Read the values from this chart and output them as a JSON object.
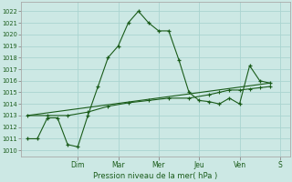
{
  "background_color": "#cce8e4",
  "grid_color": "#aad4d0",
  "line_color": "#1a5c1a",
  "xlabel": "Pression niveau de la mer( hPa )",
  "ylim": [
    1009.5,
    1022.8
  ],
  "xlim": [
    -0.3,
    13.0
  ],
  "yticks": [
    1010,
    1011,
    1012,
    1013,
    1014,
    1015,
    1016,
    1017,
    1018,
    1019,
    1020,
    1021,
    1022
  ],
  "day_labels": [
    "Dim",
    "Mar",
    "Mer",
    "Jeu",
    "Ven",
    "S"
  ],
  "day_positions": [
    2.5,
    4.5,
    6.5,
    8.5,
    10.5,
    12.5
  ],
  "series1_x": [
    0.0,
    0.5,
    1.0,
    1.5,
    2.0,
    2.5,
    3.0,
    3.5,
    4.0,
    4.5,
    5.0,
    5.5,
    6.0,
    6.5,
    7.0,
    7.5,
    8.0,
    8.5,
    9.0,
    9.5,
    10.0,
    10.5,
    11.0,
    11.5,
    12.0
  ],
  "series1_y": [
    1011.0,
    1011.0,
    1012.8,
    1012.8,
    1010.5,
    1010.3,
    1013.0,
    1015.5,
    1018.0,
    1019.0,
    1021.0,
    1022.0,
    1021.0,
    1020.3,
    1020.3,
    1017.8,
    1015.0,
    1014.3,
    1014.2,
    1014.0,
    1014.5,
    1014.0,
    1017.3,
    1016.0,
    1015.8
  ],
  "series2_x": [
    0.0,
    1.0,
    2.0,
    3.0,
    4.0,
    5.0,
    6.0,
    7.0,
    8.0,
    9.0,
    9.5,
    10.0,
    10.5,
    11.0,
    11.5,
    12.0
  ],
  "series2_y": [
    1013.0,
    1013.0,
    1013.0,
    1013.3,
    1013.8,
    1014.1,
    1014.3,
    1014.5,
    1014.5,
    1014.8,
    1015.0,
    1015.2,
    1015.2,
    1015.3,
    1015.4,
    1015.5
  ],
  "trend_x": [
    0.0,
    12.0
  ],
  "trend_y": [
    1013.0,
    1015.8
  ]
}
